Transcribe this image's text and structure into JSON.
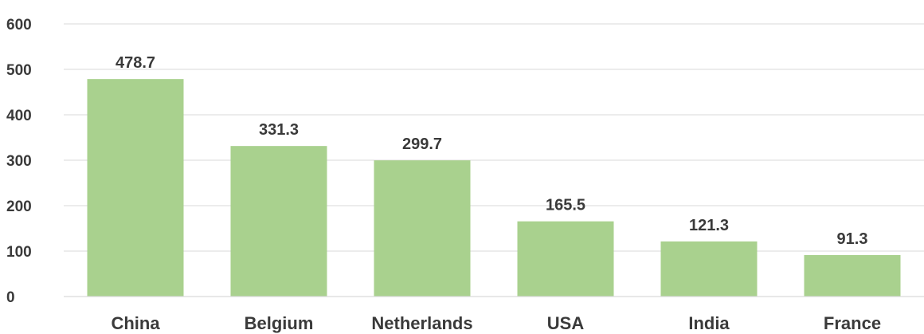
{
  "chart_data": {
    "type": "bar",
    "title": "",
    "xlabel": "",
    "ylabel": "",
    "categories": [
      "China",
      "Belgium",
      "Netherlands",
      "USA",
      "India",
      "France"
    ],
    "values": [
      478.7,
      331.3,
      299.7,
      165.5,
      121.3,
      91.3
    ],
    "data_labels": [
      "478.7",
      "331.3",
      "299.7",
      "165.5",
      "121.3",
      "91.3"
    ],
    "ylim": [
      0,
      600
    ],
    "yticks": [
      0,
      100,
      200,
      300,
      400,
      500,
      600
    ],
    "ytick_labels": [
      "0",
      "100",
      "200",
      "300",
      "400",
      "500",
      "600"
    ],
    "grid": true,
    "legend": "none",
    "bar_color": "#a9d18e"
  }
}
